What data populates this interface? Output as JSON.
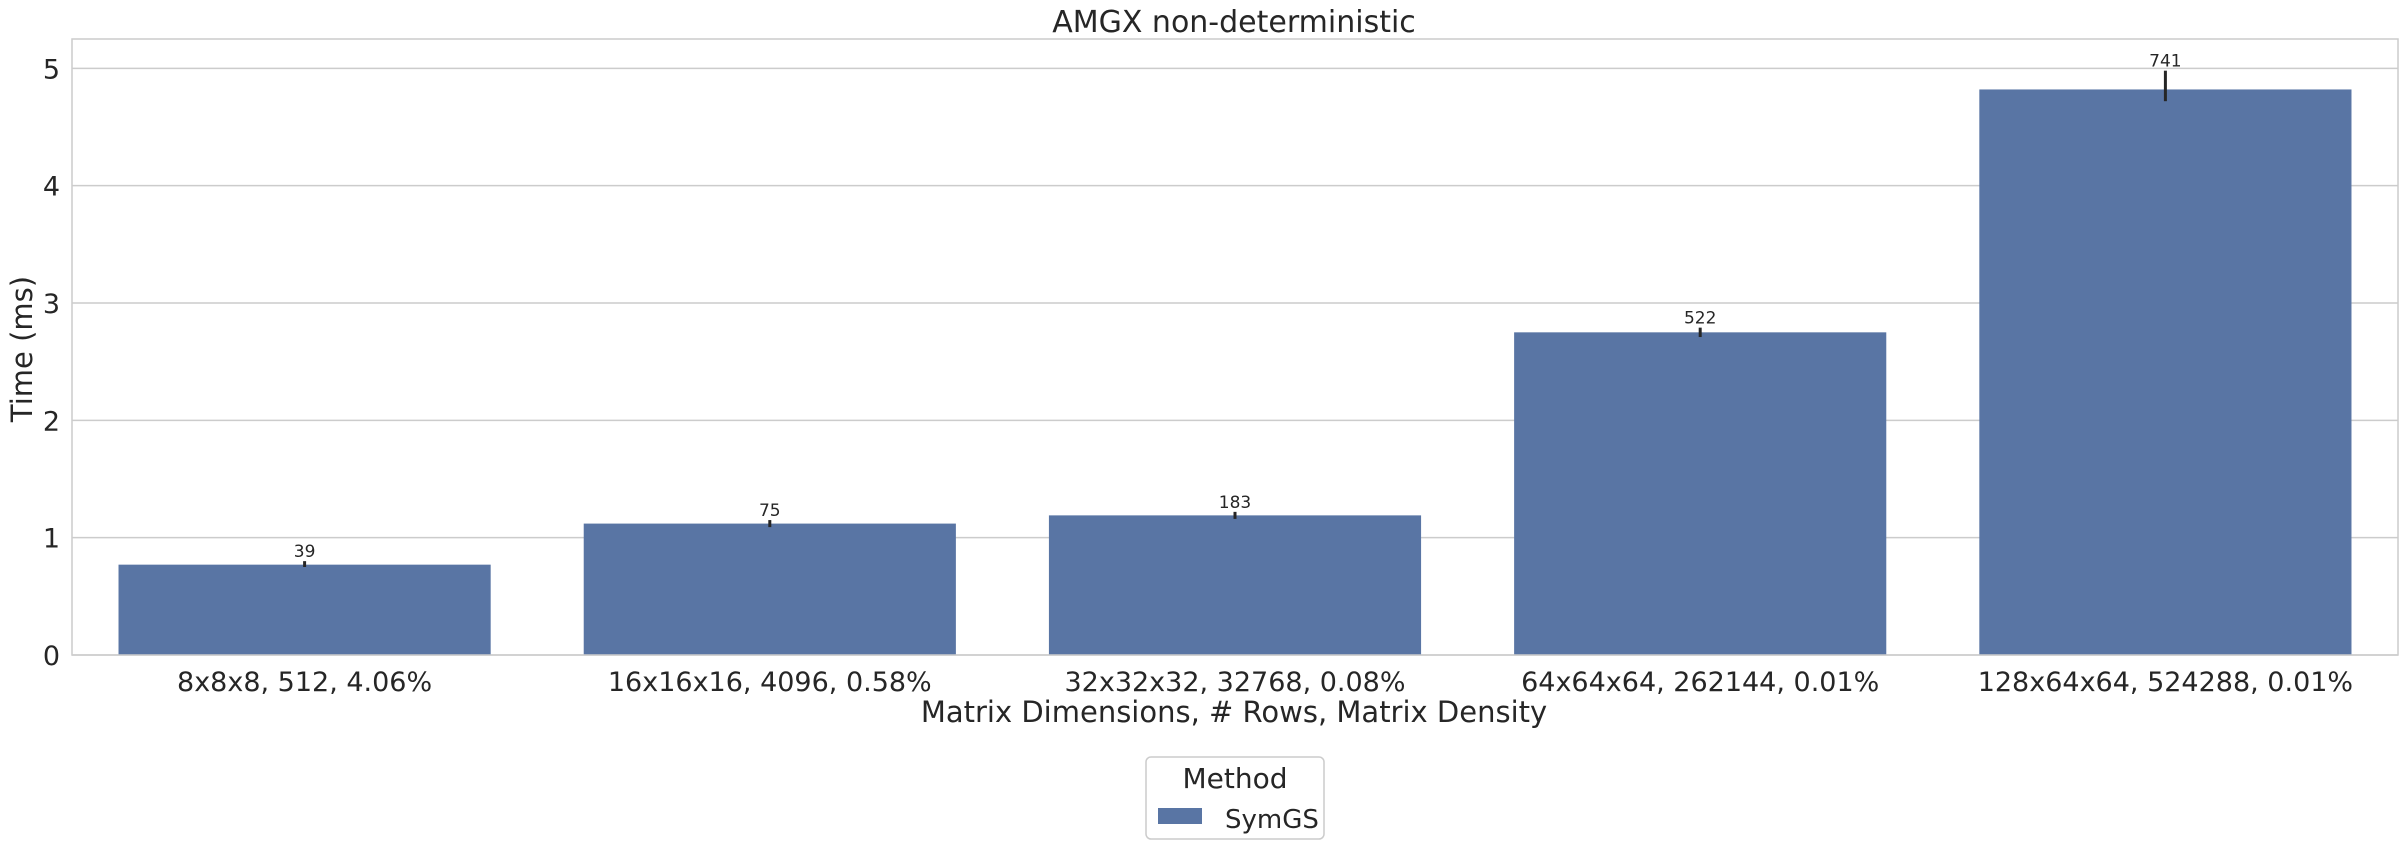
{
  "chart_data": {
    "type": "bar",
    "title": "AMGX non-deterministic",
    "xlabel": "Matrix Dimensions, # Rows, Matrix Density",
    "ylabel": "Time (ms)",
    "categories": [
      "8x8x8, 512, 4.06%",
      "16x16x16, 4096, 0.58%",
      "32x32x32, 32768, 0.08%",
      "64x64x64, 262144, 0.01%",
      "128x64x64, 524288, 0.01%"
    ],
    "series": [
      {
        "name": "SymGS",
        "values": [
          0.77,
          1.12,
          1.19,
          2.75,
          4.82
        ],
        "error_low": [
          0.75,
          1.09,
          1.16,
          2.71,
          4.72
        ],
        "error_high": [
          0.8,
          1.15,
          1.22,
          2.79,
          4.98
        ],
        "data_labels": [
          "39",
          "75",
          "183",
          "522",
          "741"
        ]
      }
    ],
    "ylim": [
      0,
      5.25
    ],
    "yticks": [
      0,
      1,
      2,
      3,
      4,
      5
    ],
    "grid": "horizontal",
    "legend": {
      "title": "Method",
      "placement": "bottom-center"
    },
    "colors": {
      "bar": "#5975a4",
      "grid": "#cccccc",
      "axis": "#cccccc",
      "text": "#262626",
      "errorbar": "#262626"
    }
  }
}
